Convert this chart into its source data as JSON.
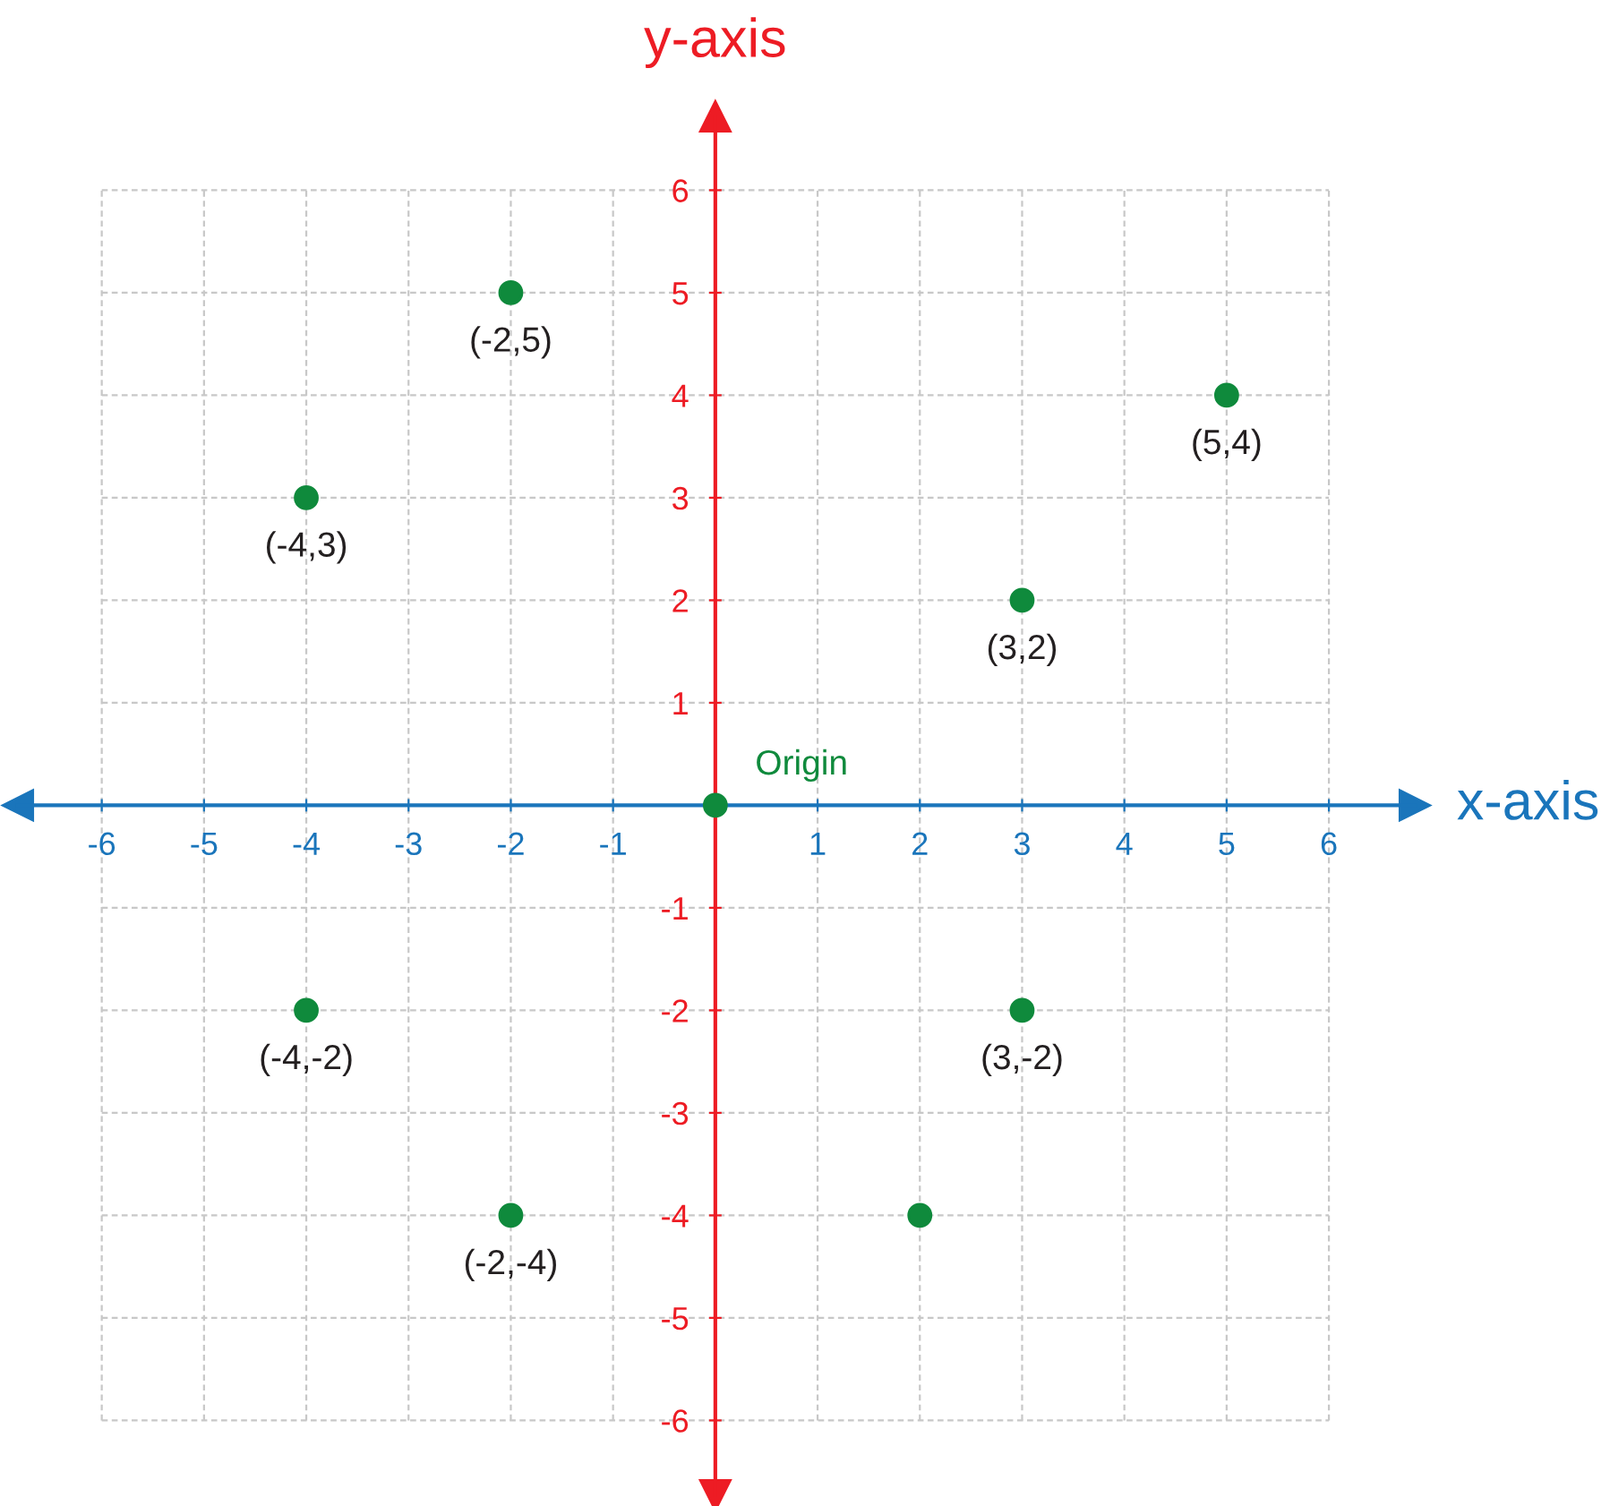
{
  "chart_data": {
    "type": "scatter",
    "xlabel": "x-axis",
    "ylabel": "y-axis",
    "series": [
      {
        "color": "#0f8a3c",
        "x": [
          -2,
          5,
          -4,
          3,
          0,
          -4,
          3,
          -2,
          2
        ],
        "values": [
          5,
          4,
          3,
          2,
          0,
          -2,
          -2,
          -4,
          -4
        ]
      }
    ],
    "marker": "circle",
    "grid": true,
    "xlim": [
      -6.82,
      6.84
    ],
    "ylim": [
      -6.73,
      6.72
    ],
    "xticks": [
      -6,
      -5,
      -4,
      -3,
      -2,
      -1,
      1,
      2,
      3,
      4,
      5,
      6
    ],
    "yticks": [
      -6,
      -5,
      -4,
      -3,
      -2,
      -1,
      1,
      2,
      3,
      4,
      5,
      6
    ],
    "annotations": [
      {
        "text": "(-2,5)",
        "x": -2,
        "y": 5
      },
      {
        "text": "(5,4)",
        "x": 5,
        "y": 4
      },
      {
        "text": "(-4,3)",
        "x": -4,
        "y": 3
      },
      {
        "text": "(3,2)",
        "x": 3,
        "y": 2
      },
      {
        "text": "Origin",
        "x": 0,
        "y": 0
      },
      {
        "text": "(-4,-2)",
        "x": -4,
        "y": -2
      },
      {
        "text": "(3,-2)",
        "x": 3,
        "y": -2
      },
      {
        "text": "(-2,-4)",
        "x": -2,
        "y": -4
      }
    ]
  }
}
